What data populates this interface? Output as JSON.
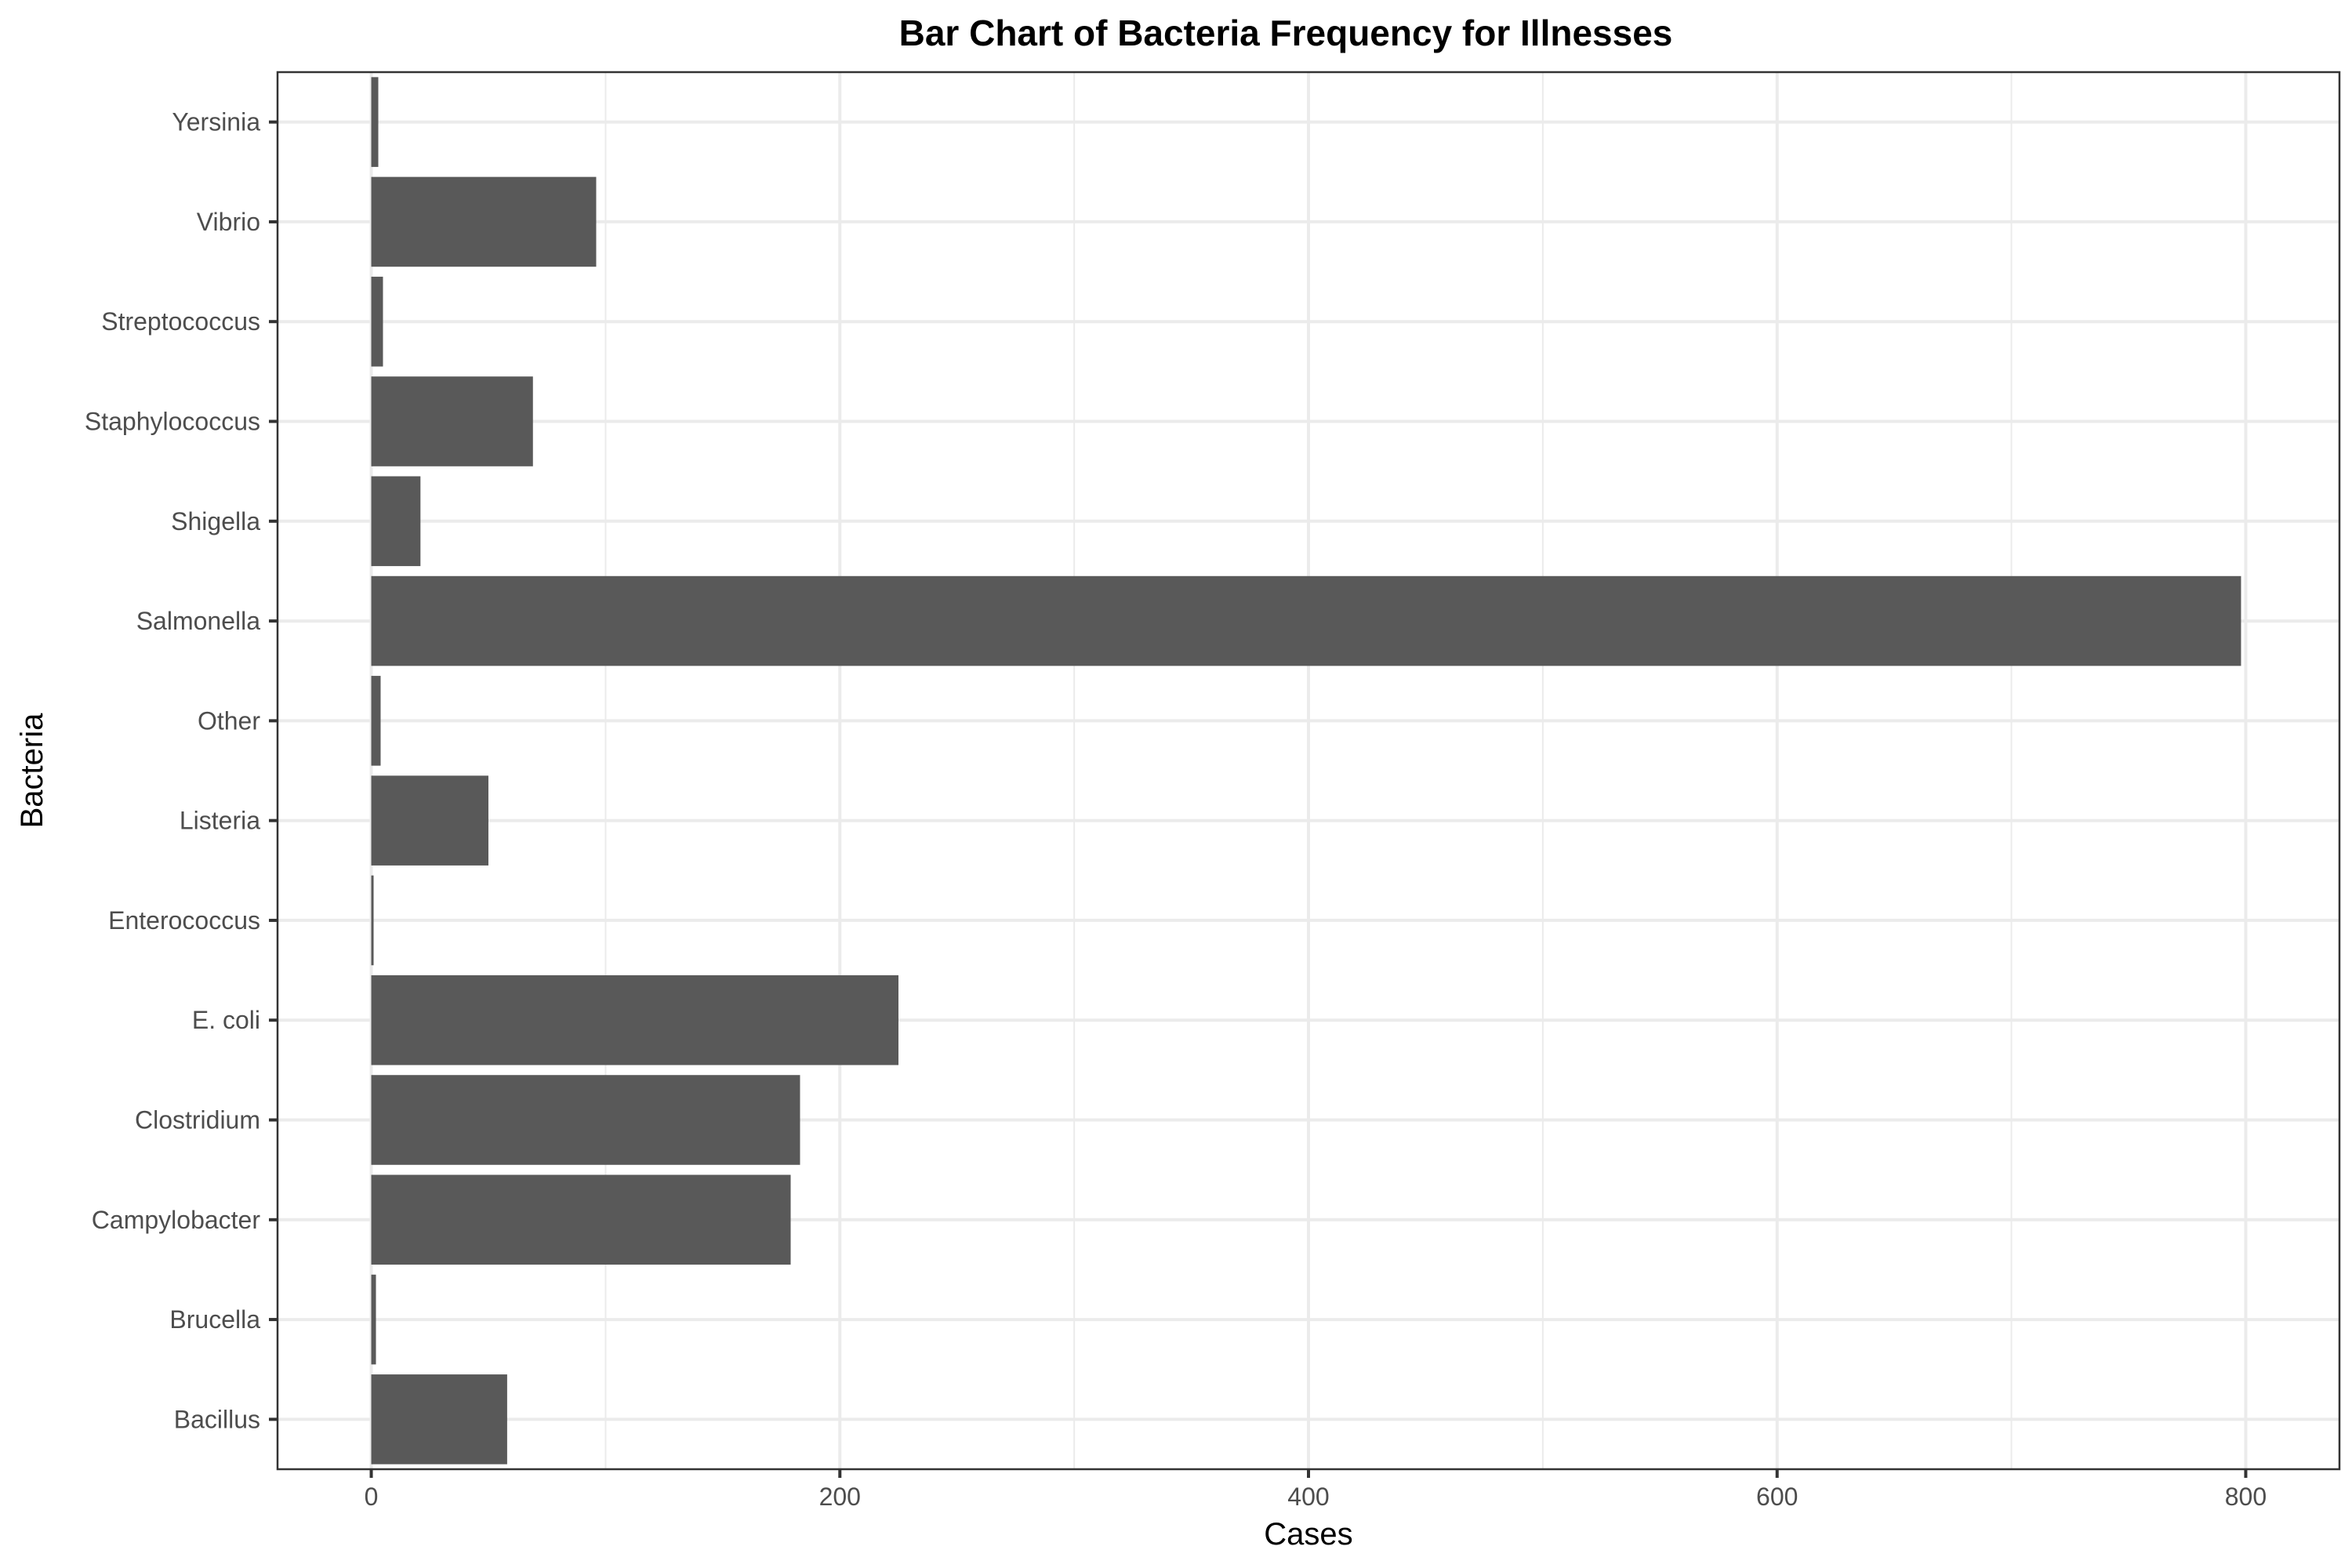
{
  "chart_data": {
    "type": "bar",
    "orientation": "horizontal",
    "title": "Bar Chart of Bacteria Frequency for Illnesses",
    "xlabel": "Cases",
    "ylabel": "Bacteria",
    "categories": [
      "Bacillus",
      "Brucella",
      "Campylobacter",
      "Clostridium",
      "E. coli",
      "Enterococcus",
      "Listeria",
      "Other",
      "Salmonella",
      "Shigella",
      "Staphylococcus",
      "Streptococcus",
      "Vibrio",
      "Yersinia"
    ],
    "values": [
      58,
      2,
      179,
      183,
      225,
      1,
      50,
      4,
      798,
      21,
      69,
      5,
      96,
      3
    ],
    "xlim": [
      -40,
      840
    ],
    "xticks": [
      0,
      200,
      400,
      600,
      800
    ],
    "xtick_labels": [
      "0",
      "200",
      "400",
      "600",
      "800"
    ],
    "grid": true,
    "bar_color": "#595959"
  }
}
